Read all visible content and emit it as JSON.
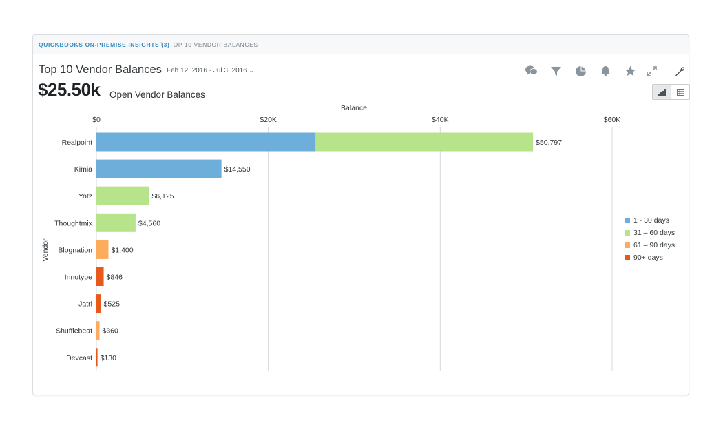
{
  "breadcrumb": {
    "root": "QUICKBOOKS ON-PREMISE INSIGHTS (3)",
    "separator": "›",
    "current": "TOP 10 VENDOR BALANCES"
  },
  "header": {
    "title": "Top 10 Vendor Balances",
    "date_range": "Feb 12, 2016 - Jul 3, 2016",
    "date_chevron": "⌄",
    "total": "$25.50k",
    "total_label": "Open Vendor Balances"
  },
  "toolbar": {
    "icons": [
      "comments-icon",
      "filter-icon",
      "pie-chart-icon",
      "bell-icon",
      "star-icon",
      "expand-icon",
      "wrench-icon"
    ],
    "view_toggle": [
      "bar-chart-view-icon",
      "table-view-icon"
    ],
    "active_view": "bar-chart-view-icon"
  },
  "colors": {
    "1-30": "#6eaedb",
    "31-60": "#b7e38b",
    "61-90": "#fdab5c",
    "90+": "#e8591c",
    "link": "#3a8cc6",
    "icon": "#8a949c"
  },
  "chart_data": {
    "type": "bar",
    "orientation": "horizontal",
    "stacked": true,
    "title": "",
    "xlabel": "Balance",
    "ylabel": "Vendor",
    "xlim": [
      0,
      60000
    ],
    "x_ticks": [
      0,
      20000,
      40000,
      60000
    ],
    "x_tick_labels": [
      "$0",
      "$20K",
      "$40K",
      "$60K"
    ],
    "x_axis_position": "top",
    "grid": true,
    "legend_position": "right",
    "categories": [
      "Realpoint",
      "Kimia",
      "Yotz",
      "Thoughtmix",
      "Blognation",
      "Innotype",
      "Jatri",
      "Shufflebeat",
      "Devcast"
    ],
    "series": [
      {
        "name": "1 - 30 days",
        "color_key": "1-30",
        "values": [
          25500,
          14550,
          0,
          0,
          0,
          0,
          0,
          0,
          0
        ]
      },
      {
        "name": "31 – 60 days",
        "color_key": "31-60",
        "values": [
          25297,
          0,
          6125,
          4560,
          0,
          0,
          0,
          0,
          0
        ]
      },
      {
        "name": "61 – 90 days",
        "color_key": "61-90",
        "values": [
          0,
          0,
          0,
          0,
          1400,
          0,
          0,
          360,
          0
        ]
      },
      {
        "name": "90+ days",
        "color_key": "90+",
        "values": [
          0,
          0,
          0,
          0,
          0,
          846,
          525,
          0,
          130
        ]
      }
    ],
    "totals": [
      50797,
      14550,
      6125,
      4560,
      1400,
      846,
      525,
      360,
      130
    ],
    "total_labels": [
      "$50,797",
      "$14,550",
      "$6,125",
      "$4,560",
      "$1,400",
      "$846",
      "$525",
      "$360",
      "$130"
    ]
  }
}
